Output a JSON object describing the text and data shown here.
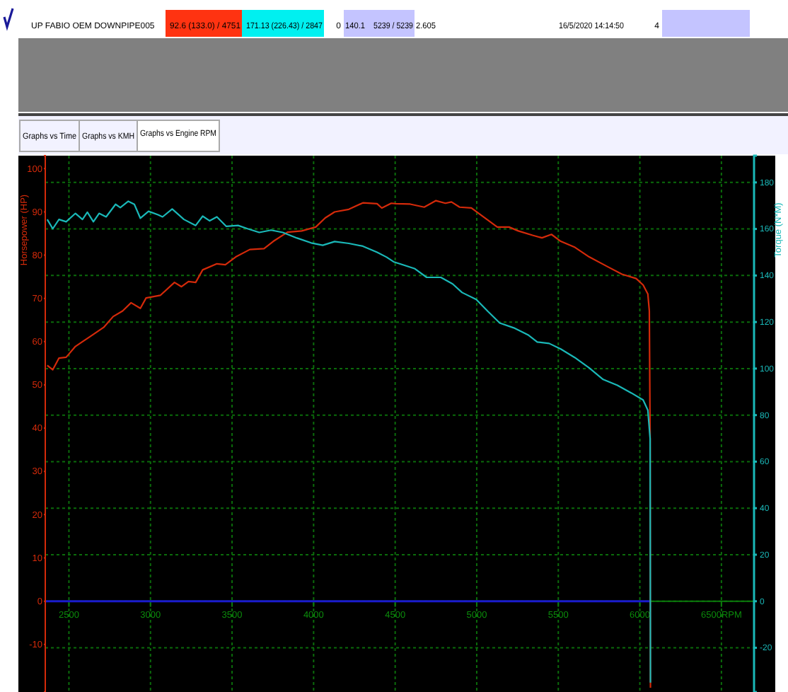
{
  "chart_data": {
    "type": "line",
    "xlabel": null,
    "ylabel": "Horsepower (HP)",
    "y2label": "Torque (N*M)",
    "annotations": [
      "UP FABIO OEM DOWNPIPE005",
      "92.6 (133.0) / 4751",
      "171.13 (226.43) / 2847",
      "0",
      "140.1",
      "5239 / 5239",
      "2.605",
      "16/5/2020 14:14:50",
      "4",
      "Graphs vs Time",
      "Graphs vs KMH",
      "Graphs vs Engine RPM"
    ],
    "xlim": [
      2355,
      6700
    ],
    "xticks": [
      2500,
      3000,
      3500,
      4000,
      4500,
      5000,
      5500,
      6000,
      {
        "value": 6500,
        "label": "6500RPM"
      }
    ],
    "ylim": [
      -21,
      103
    ],
    "yticks": [
      -10,
      0,
      10,
      20,
      30,
      40,
      50,
      60,
      70,
      80,
      90,
      100
    ],
    "y2lim": [
      -39,
      191.5
    ],
    "y2ticks": [
      -20,
      0,
      20,
      40,
      60,
      80,
      100,
      120,
      140,
      160,
      180
    ],
    "grid": true,
    "line_style": "solid",
    "marker": "none",
    "ref_lines": [
      {
        "axis": "y",
        "value": 0,
        "color": "#1a1acc"
      }
    ],
    "series": [
      {
        "color": "#d42a0a",
        "x": [
          2367,
          2401,
          2439,
          2483,
          2540,
          2583,
          2627,
          2670,
          2713,
          2771,
          2829,
          2881,
          2938,
          2973,
          3060,
          3147,
          3190,
          3233,
          3277,
          3320,
          3407,
          3459,
          3523,
          3609,
          3696,
          3753,
          3840,
          3927,
          4013,
          4071,
          4129,
          4216,
          4302,
          4389,
          4418,
          4476,
          4505,
          4592,
          4678,
          4750,
          4808,
          4845,
          4895,
          4967,
          5039,
          5126,
          5198,
          5255,
          5342,
          5400,
          5458,
          5515,
          5602,
          5689,
          5804,
          5890,
          5977,
          6020,
          6049,
          6058,
          6063,
          6064,
          6065
        ],
        "values": [
          54.5,
          53.5,
          56.2,
          56.4,
          58.9,
          60.0,
          61.1,
          62.2,
          63.3,
          65.8,
          67.1,
          69.0,
          67.7,
          70.1,
          70.7,
          73.7,
          72.7,
          73.9,
          73.7,
          76.6,
          78.0,
          77.8,
          79.6,
          81.3,
          81.5,
          83.2,
          85.3,
          85.6,
          86.5,
          88.6,
          90.0,
          90.6,
          92.1,
          91.9,
          90.9,
          92.0,
          91.9,
          91.8,
          91.1,
          92.6,
          92.0,
          92.3,
          91.1,
          90.9,
          88.9,
          86.5,
          86.5,
          85.6,
          84.6,
          84.0,
          84.8,
          83.2,
          81.8,
          79.6,
          77.3,
          75.6,
          74.6,
          73.1,
          71.0,
          67.1,
          37.6,
          0,
          -20
        ]
      },
      {
        "color": "#1ab8b8",
        "axis": "y2",
        "x": [
          2367,
          2401,
          2439,
          2483,
          2540,
          2583,
          2613,
          2650,
          2685,
          2728,
          2786,
          2815,
          2864,
          2901,
          2938,
          2988,
          3046,
          3074,
          3133,
          3205,
          3277,
          3320,
          3363,
          3407,
          3465,
          3537,
          3595,
          3667,
          3739,
          3811,
          3898,
          3985,
          4056,
          4129,
          4216,
          4302,
          4389,
          4447,
          4490,
          4534,
          4621,
          4693,
          4780,
          4852,
          4910,
          4997,
          5068,
          5141,
          5227,
          5314,
          5371,
          5444,
          5515,
          5602,
          5689,
          5775,
          5862,
          5948,
          6020,
          6049,
          6063,
          6064,
          6065
        ],
        "values": [
          164.1,
          160.1,
          164.1,
          163.1,
          166.7,
          164.1,
          167.2,
          163.1,
          166.7,
          165.2,
          170.6,
          169.2,
          171.9,
          170.6,
          164.6,
          167.6,
          166.1,
          165.2,
          168.6,
          164.1,
          161.5,
          165.5,
          163.5,
          165.2,
          161.1,
          161.5,
          160.1,
          158.5,
          159.5,
          158.5,
          156.1,
          154.0,
          153.0,
          154.6,
          153.8,
          152.6,
          150.0,
          147.9,
          145.9,
          144.9,
          142.9,
          139.2,
          139.2,
          136.4,
          132.7,
          129.7,
          124.6,
          119.6,
          117.5,
          114.5,
          111.4,
          110.8,
          108.4,
          104.7,
          100.3,
          95.3,
          92.8,
          89.5,
          86.5,
          82.1,
          69.9,
          20,
          -35
        ]
      }
    ]
  }
}
